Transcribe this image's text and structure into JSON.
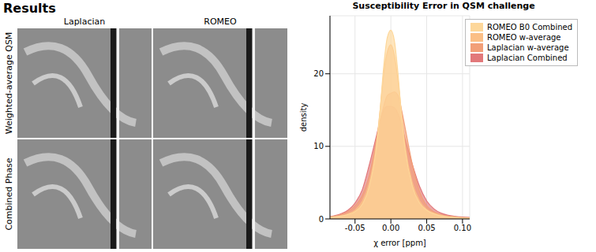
{
  "header": {
    "title": "Results"
  },
  "figure": {
    "column_labels": [
      "Laplacian",
      "ROMEO"
    ],
    "row_labels": [
      "Weighted-average QSM",
      "Combined Phase"
    ]
  },
  "chart_data": {
    "type": "area",
    "title": "Susceptibility Error in QSM challenge",
    "x_label": "χ error [ppm]",
    "y_label": "density",
    "x": [
      -0.085,
      -0.07,
      -0.06,
      -0.05,
      -0.04,
      -0.03,
      -0.02,
      -0.015,
      -0.01,
      -0.005,
      0,
      0.005,
      0.01,
      0.015,
      0.02,
      0.03,
      0.04,
      0.05,
      0.06,
      0.07,
      0.08,
      0.09,
      0.1,
      0.11
    ],
    "series": [
      {
        "name": "ROMEO B0 Combined",
        "color": "#fdd79a",
        "values": [
          0.2,
          0.4,
          0.6,
          1.0,
          2.0,
          4.5,
          10,
          15,
          21,
          25,
          26,
          24.5,
          20,
          14,
          9.5,
          4.5,
          2.2,
          1.2,
          0.7,
          0.4,
          0.3,
          0.2,
          0.15,
          0.1
        ]
      },
      {
        "name": "ROMEO w-average",
        "color": "#fbbf86",
        "values": [
          0.2,
          0.4,
          0.7,
          1.2,
          2.4,
          5,
          10.5,
          15,
          20,
          23,
          24,
          22.5,
          19,
          14.5,
          10,
          5,
          2.5,
          1.3,
          0.8,
          0.5,
          0.3,
          0.2,
          0.15,
          0.1
        ]
      },
      {
        "name": "Laplacian w-average",
        "color": "#f29f78",
        "values": [
          0.3,
          0.6,
          1,
          1.8,
          3.2,
          6,
          11,
          13.5,
          15.5,
          17,
          17.3,
          17.5,
          17,
          15,
          12.5,
          7.5,
          3.8,
          1.8,
          1,
          0.6,
          0.4,
          0.3,
          0.2,
          0.15
        ]
      },
      {
        "name": "Laplacian Combined",
        "color": "#e2787a",
        "values": [
          0.3,
          0.7,
          1.2,
          2.2,
          4,
          7.5,
          11.5,
          13.5,
          15,
          15.5,
          15.5,
          15.3,
          14.5,
          13,
          11,
          7.5,
          4.5,
          2.5,
          1.4,
          0.8,
          0.5,
          0.35,
          0.25,
          0.2
        ]
      }
    ],
    "xlim": [
      -0.085,
      0.11
    ],
    "xticks": [
      -0.05,
      {
        "value": 0,
        "label": "0.00"
      },
      0.05,
      {
        "value": 0.1,
        "label": "0.10"
      }
    ],
    "ylim": [
      0,
      28
    ],
    "yticks": [
      0,
      10,
      20
    ],
    "grid": true,
    "legend": "upper right"
  }
}
